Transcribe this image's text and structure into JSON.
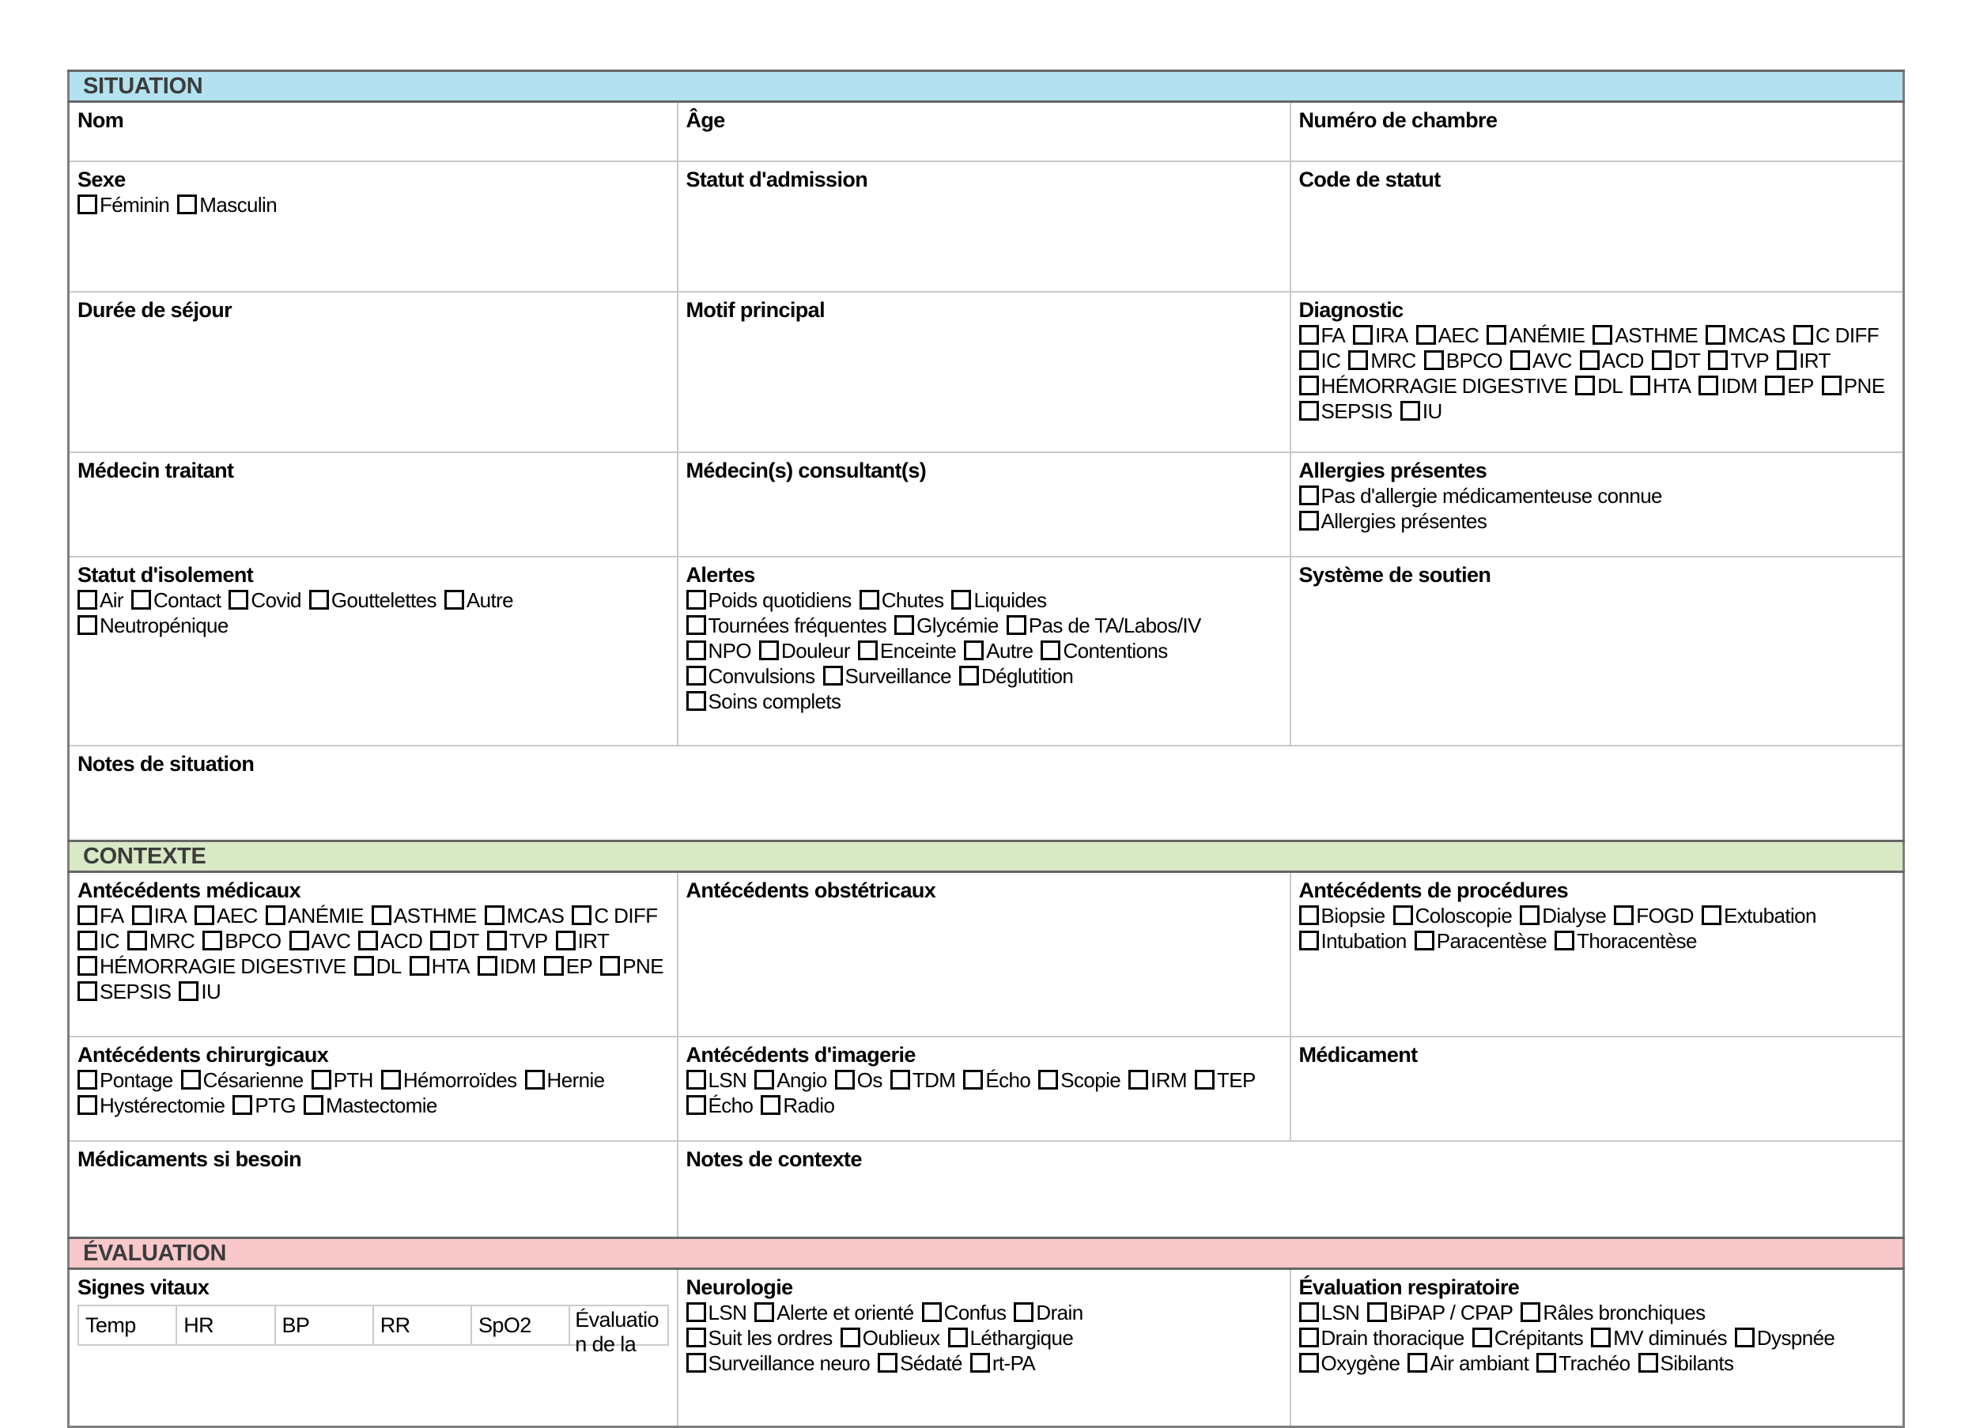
{
  "sections": {
    "situation": {
      "title": "SITUATION",
      "color": "#b3e1ef"
    },
    "contexte": {
      "title": "CONTEXTE",
      "color": "#d9e8c5"
    },
    "evaluation": {
      "title": "ÉVALUATION",
      "color": "#f9c8cb"
    }
  },
  "labels": {
    "nom": "Nom",
    "age": "Âge",
    "chambre": "Numéro de chambre",
    "sexe": "Sexe",
    "admission": "Statut d'admission",
    "code_statut": "Code de statut",
    "duree_sejour": "Durée de séjour",
    "motif_principal": "Motif principal",
    "diagnostic": "Diagnostic",
    "medecin_traitant": "Médecin traitant",
    "medecin_consultant": "Médecin(s) consultant(s)",
    "allergies": "Allergies présentes",
    "isolement": "Statut d'isolement",
    "alertes": "Alertes",
    "soutien": "Système de soutien",
    "notes_situation": "Notes de situation",
    "ant_medicaux": "Antécédents médicaux",
    "ant_obstetricaux": "Antécédents obstétricaux",
    "ant_procedures": "Antécédents de procédures",
    "ant_chirurgicaux": "Antécédents chirurgicaux",
    "ant_imagerie": "Antécédents d'imagerie",
    "medicament": "Médicament",
    "medicaments_si_besoin": "Médicaments si besoin",
    "notes_contexte": "Notes de contexte",
    "signes_vitaux": "Signes vitaux",
    "neurologie": "Neurologie",
    "eval_respiratoire": "Évaluation respiratoire"
  },
  "checkbox_groups": {
    "sexe": [
      [
        "Féminin",
        "Masculin"
      ]
    ],
    "diagnostic": [
      [
        "FA",
        "IRA",
        "AEC",
        "ANÉMIE",
        "ASTHME",
        "MCAS",
        "C DIFF"
      ],
      [
        "IC",
        "MRC",
        "BPCO",
        "AVC",
        "ACD",
        "DT",
        "TVP",
        "IRT"
      ],
      [
        "HÉMORRAGIE DIGESTIVE",
        "DL",
        "HTA",
        "IDM",
        "EP",
        "PNE"
      ],
      [
        "SEPSIS",
        "IU"
      ]
    ],
    "allergies": [
      [
        "Pas d'allergie médicamenteuse connue"
      ],
      [
        "Allergies présentes"
      ]
    ],
    "isolement": [
      [
        "Air",
        "Contact",
        "Covid",
        "Gouttelettes",
        "Autre"
      ],
      [
        "Neutropénique"
      ]
    ],
    "alertes": [
      [
        "Poids quotidiens",
        "Chutes",
        "Liquides"
      ],
      [
        "Tournées fréquentes",
        "Glycémie",
        "Pas de TA/Labos/IV"
      ],
      [
        "NPO",
        "Douleur",
        "Enceinte",
        "Autre",
        "Contentions"
      ],
      [
        "Convulsions",
        "Surveillance",
        "Déglutition"
      ],
      [
        "Soins complets"
      ]
    ],
    "ant_medicaux": [
      [
        "FA",
        "IRA",
        "AEC",
        "ANÉMIE",
        "ASTHME",
        "MCAS",
        "C DIFF"
      ],
      [
        "IC",
        "MRC",
        "BPCO",
        "AVC",
        "ACD",
        "DT",
        "TVP",
        "IRT"
      ],
      [
        "HÉMORRAGIE DIGESTIVE",
        "DL",
        "HTA",
        "IDM",
        "EP",
        "PNE"
      ],
      [
        "SEPSIS",
        "IU"
      ]
    ],
    "ant_procedures": [
      [
        "Biopsie",
        "Coloscopie",
        "Dialyse",
        "FOGD",
        "Extubation"
      ],
      [
        "Intubation",
        "Paracentèse",
        "Thoracentèse"
      ]
    ],
    "ant_chirurgicaux": [
      [
        "Pontage",
        "Césarienne",
        "PTH",
        "Hémorroïdes",
        "Hernie"
      ],
      [
        "Hystérectomie",
        "PTG",
        "Mastectomie"
      ]
    ],
    "ant_imagerie": [
      [
        "LSN",
        "Angio",
        "Os",
        "TDM",
        "Écho",
        "Scopie",
        "IRM",
        "TEP"
      ],
      [
        "Écho",
        "Radio"
      ]
    ],
    "neurologie": [
      [
        "LSN",
        "Alerte et orienté",
        "Confus",
        "Drain"
      ],
      [
        "Suit les ordres",
        "Oublieux",
        "Léthargique"
      ],
      [
        "Surveillance neuro",
        "Sédaté",
        "rt-PA"
      ]
    ],
    "respiratoire": [
      [
        "LSN",
        "BiPAP / CPAP",
        "Râles bronchiques"
      ],
      [
        "Drain thoracique",
        "Crépitants",
        "MV diminués",
        "Dyspnée"
      ],
      [
        "Oxygène",
        "Air ambiant",
        "Trachéo",
        "Sibilants"
      ]
    ]
  },
  "vitals_table": {
    "headers": [
      "Temp",
      "HR",
      "BP",
      "RR",
      "SpO2",
      "Évaluation de la"
    ]
  }
}
